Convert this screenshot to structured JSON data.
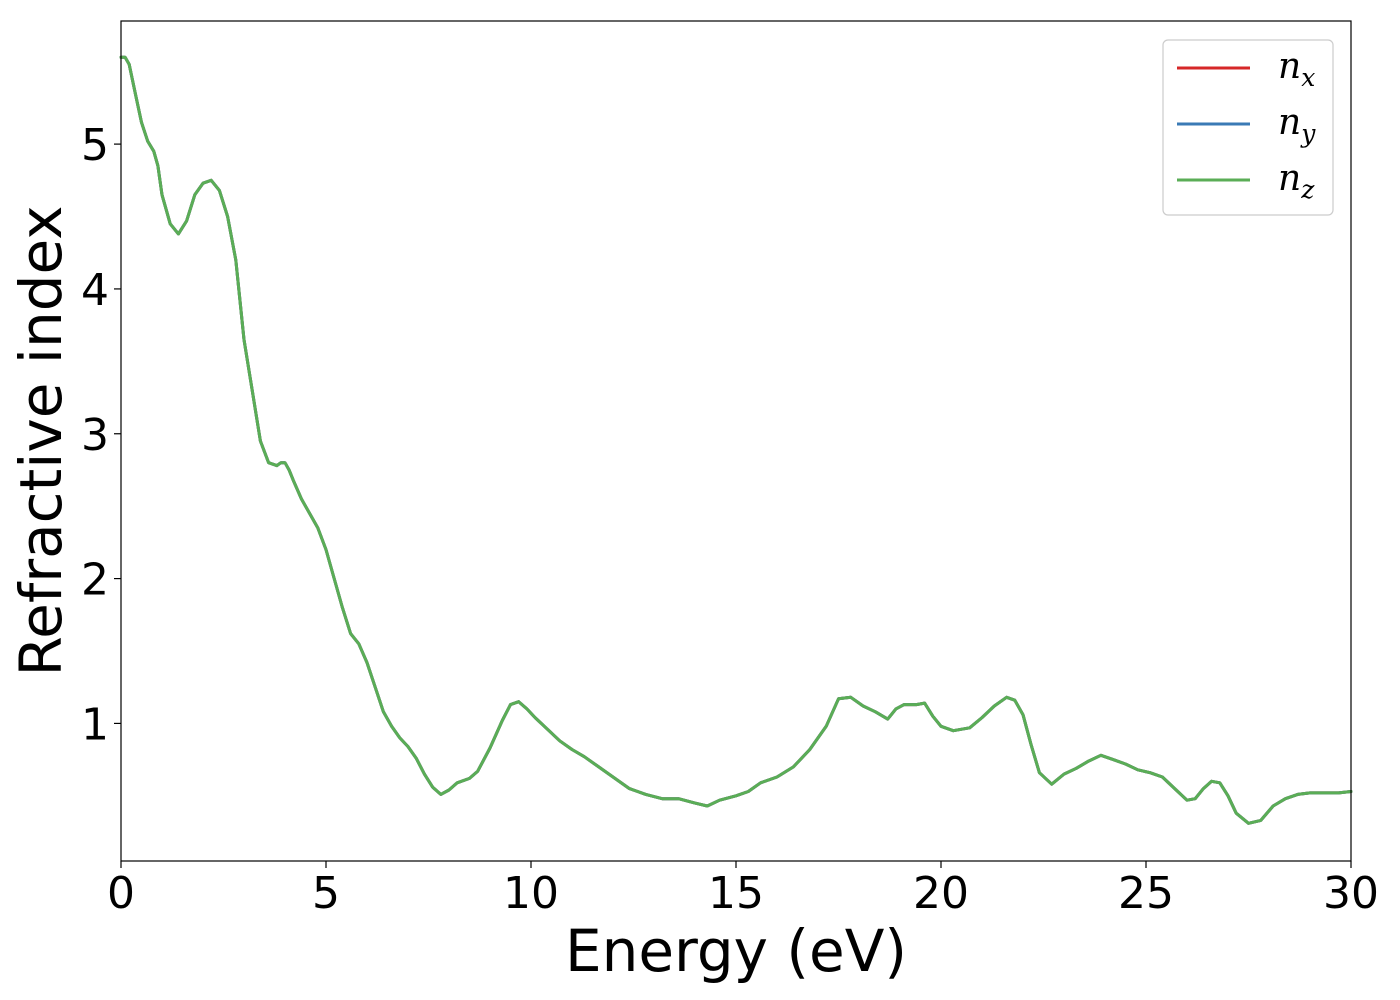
{
  "chart_data": {
    "type": "line",
    "title": "",
    "xlabel": "Energy (eV)",
    "ylabel": "Refractive index",
    "xlim": [
      0,
      30
    ],
    "ylim": [
      0.05,
      5.85
    ],
    "xticks": [
      0,
      5,
      10,
      15,
      20,
      25,
      30
    ],
    "xtick_labels": [
      "0",
      "5",
      "10",
      "15",
      "20",
      "25",
      "30"
    ],
    "yticks": [
      1,
      2,
      3,
      4,
      5
    ],
    "ytick_labels": [
      "1",
      "2",
      "3",
      "4",
      "5"
    ],
    "grid": false,
    "legend": {
      "position": "top-right",
      "entries": [
        {
          "symbol": "n",
          "subscript": "x",
          "color": "#d62728"
        },
        {
          "symbol": "n",
          "subscript": "y",
          "color": "#3a7ab5"
        },
        {
          "symbol": "n",
          "subscript": "z",
          "color": "#5aad56"
        }
      ]
    },
    "x": [
      0,
      0.1,
      0.2,
      0.35,
      0.5,
      0.65,
      0.8,
      0.9,
      1.0,
      1.2,
      1.4,
      1.6,
      1.8,
      2.0,
      2.2,
      2.4,
      2.6,
      2.8,
      3.0,
      3.2,
      3.4,
      3.6,
      3.8,
      3.9,
      4.0,
      4.1,
      4.2,
      4.4,
      4.6,
      4.8,
      5.0,
      5.2,
      5.4,
      5.6,
      5.8,
      6.0,
      6.2,
      6.4,
      6.6,
      6.8,
      7.0,
      7.2,
      7.4,
      7.6,
      7.8,
      8.0,
      8.2,
      8.5,
      8.7,
      9.0,
      9.3,
      9.5,
      9.7,
      9.9,
      10.1,
      10.4,
      10.7,
      11.0,
      11.3,
      11.6,
      12.0,
      12.4,
      12.8,
      13.2,
      13.6,
      14.0,
      14.3,
      14.6,
      15.0,
      15.3,
      15.6,
      16.0,
      16.4,
      16.8,
      17.2,
      17.5,
      17.8,
      18.1,
      18.4,
      18.7,
      18.9,
      19.1,
      19.4,
      19.6,
      19.8,
      20.0,
      20.3,
      20.7,
      21.0,
      21.3,
      21.6,
      21.8,
      22.0,
      22.2,
      22.4,
      22.7,
      23.0,
      23.3,
      23.6,
      23.9,
      24.2,
      24.5,
      24.8,
      25.1,
      25.4,
      25.7,
      26.0,
      26.2,
      26.4,
      26.6,
      26.8,
      27.0,
      27.2,
      27.5,
      27.8,
      28.1,
      28.4,
      28.7,
      29.0,
      29.4,
      29.7,
      30.0
    ],
    "series": [
      {
        "name": "",
        "color": "#d62728",
        "values": [
          5.6,
          5.6,
          5.55,
          5.35,
          5.15,
          5.02,
          4.95,
          4.85,
          4.65,
          4.45,
          4.38,
          4.47,
          4.65,
          4.73,
          4.75,
          4.68,
          4.5,
          4.2,
          3.65,
          3.3,
          2.95,
          2.8,
          2.78,
          2.8,
          2.8,
          2.75,
          2.68,
          2.55,
          2.45,
          2.35,
          2.2,
          2.0,
          1.8,
          1.62,
          1.55,
          1.42,
          1.25,
          1.08,
          0.98,
          0.9,
          0.84,
          0.76,
          0.65,
          0.56,
          0.51,
          0.54,
          0.59,
          0.62,
          0.67,
          0.83,
          1.02,
          1.13,
          1.15,
          1.1,
          1.04,
          0.96,
          0.88,
          0.82,
          0.77,
          0.71,
          0.63,
          0.55,
          0.51,
          0.48,
          0.48,
          0.45,
          0.43,
          0.47,
          0.5,
          0.53,
          0.59,
          0.63,
          0.7,
          0.82,
          0.98,
          1.17,
          1.18,
          1.12,
          1.08,
          1.03,
          1.1,
          1.13,
          1.13,
          1.14,
          1.05,
          0.98,
          0.95,
          0.97,
          1.04,
          1.12,
          1.18,
          1.16,
          1.06,
          0.85,
          0.66,
          0.58,
          0.65,
          0.69,
          0.74,
          0.78,
          0.75,
          0.72,
          0.68,
          0.66,
          0.63,
          0.55,
          0.47,
          0.48,
          0.55,
          0.6,
          0.59,
          0.5,
          0.38,
          0.31,
          0.33,
          0.43,
          0.48,
          0.51,
          0.52,
          0.52,
          0.52,
          0.53
        ]
      },
      {
        "name": "",
        "color": "#3a7ab5",
        "values": [
          5.6,
          5.6,
          5.55,
          5.35,
          5.15,
          5.02,
          4.95,
          4.85,
          4.65,
          4.45,
          4.38,
          4.47,
          4.65,
          4.73,
          4.75,
          4.68,
          4.5,
          4.2,
          3.65,
          3.3,
          2.95,
          2.8,
          2.78,
          2.8,
          2.8,
          2.75,
          2.68,
          2.55,
          2.45,
          2.35,
          2.2,
          2.0,
          1.8,
          1.62,
          1.55,
          1.42,
          1.25,
          1.08,
          0.98,
          0.9,
          0.84,
          0.76,
          0.65,
          0.56,
          0.51,
          0.54,
          0.59,
          0.62,
          0.67,
          0.83,
          1.02,
          1.13,
          1.15,
          1.1,
          1.04,
          0.96,
          0.88,
          0.82,
          0.77,
          0.71,
          0.63,
          0.55,
          0.51,
          0.48,
          0.48,
          0.45,
          0.43,
          0.47,
          0.5,
          0.53,
          0.59,
          0.63,
          0.7,
          0.82,
          0.98,
          1.17,
          1.18,
          1.12,
          1.08,
          1.03,
          1.1,
          1.13,
          1.13,
          1.14,
          1.05,
          0.98,
          0.95,
          0.97,
          1.04,
          1.12,
          1.18,
          1.16,
          1.06,
          0.85,
          0.66,
          0.58,
          0.65,
          0.69,
          0.74,
          0.78,
          0.75,
          0.72,
          0.68,
          0.66,
          0.63,
          0.55,
          0.47,
          0.48,
          0.55,
          0.6,
          0.59,
          0.5,
          0.38,
          0.31,
          0.33,
          0.43,
          0.48,
          0.51,
          0.52,
          0.52,
          0.52,
          0.53
        ]
      },
      {
        "name": "",
        "color": "#5aad56",
        "values": [
          5.6,
          5.6,
          5.55,
          5.35,
          5.15,
          5.02,
          4.95,
          4.85,
          4.65,
          4.45,
          4.38,
          4.47,
          4.65,
          4.73,
          4.75,
          4.68,
          4.5,
          4.2,
          3.65,
          3.3,
          2.95,
          2.8,
          2.78,
          2.8,
          2.8,
          2.75,
          2.68,
          2.55,
          2.45,
          2.35,
          2.2,
          2.0,
          1.8,
          1.62,
          1.55,
          1.42,
          1.25,
          1.08,
          0.98,
          0.9,
          0.84,
          0.76,
          0.65,
          0.56,
          0.51,
          0.54,
          0.59,
          0.62,
          0.67,
          0.83,
          1.02,
          1.13,
          1.15,
          1.1,
          1.04,
          0.96,
          0.88,
          0.82,
          0.77,
          0.71,
          0.63,
          0.55,
          0.51,
          0.48,
          0.48,
          0.45,
          0.43,
          0.47,
          0.5,
          0.53,
          0.59,
          0.63,
          0.7,
          0.82,
          0.98,
          1.17,
          1.18,
          1.12,
          1.08,
          1.03,
          1.1,
          1.13,
          1.13,
          1.14,
          1.05,
          0.98,
          0.95,
          0.97,
          1.04,
          1.12,
          1.18,
          1.16,
          1.06,
          0.85,
          0.66,
          0.58,
          0.65,
          0.69,
          0.74,
          0.78,
          0.75,
          0.72,
          0.68,
          0.66,
          0.63,
          0.55,
          0.47,
          0.48,
          0.55,
          0.6,
          0.59,
          0.5,
          0.38,
          0.31,
          0.33,
          0.43,
          0.48,
          0.51,
          0.52,
          0.52,
          0.52,
          0.53
        ]
      }
    ]
  }
}
